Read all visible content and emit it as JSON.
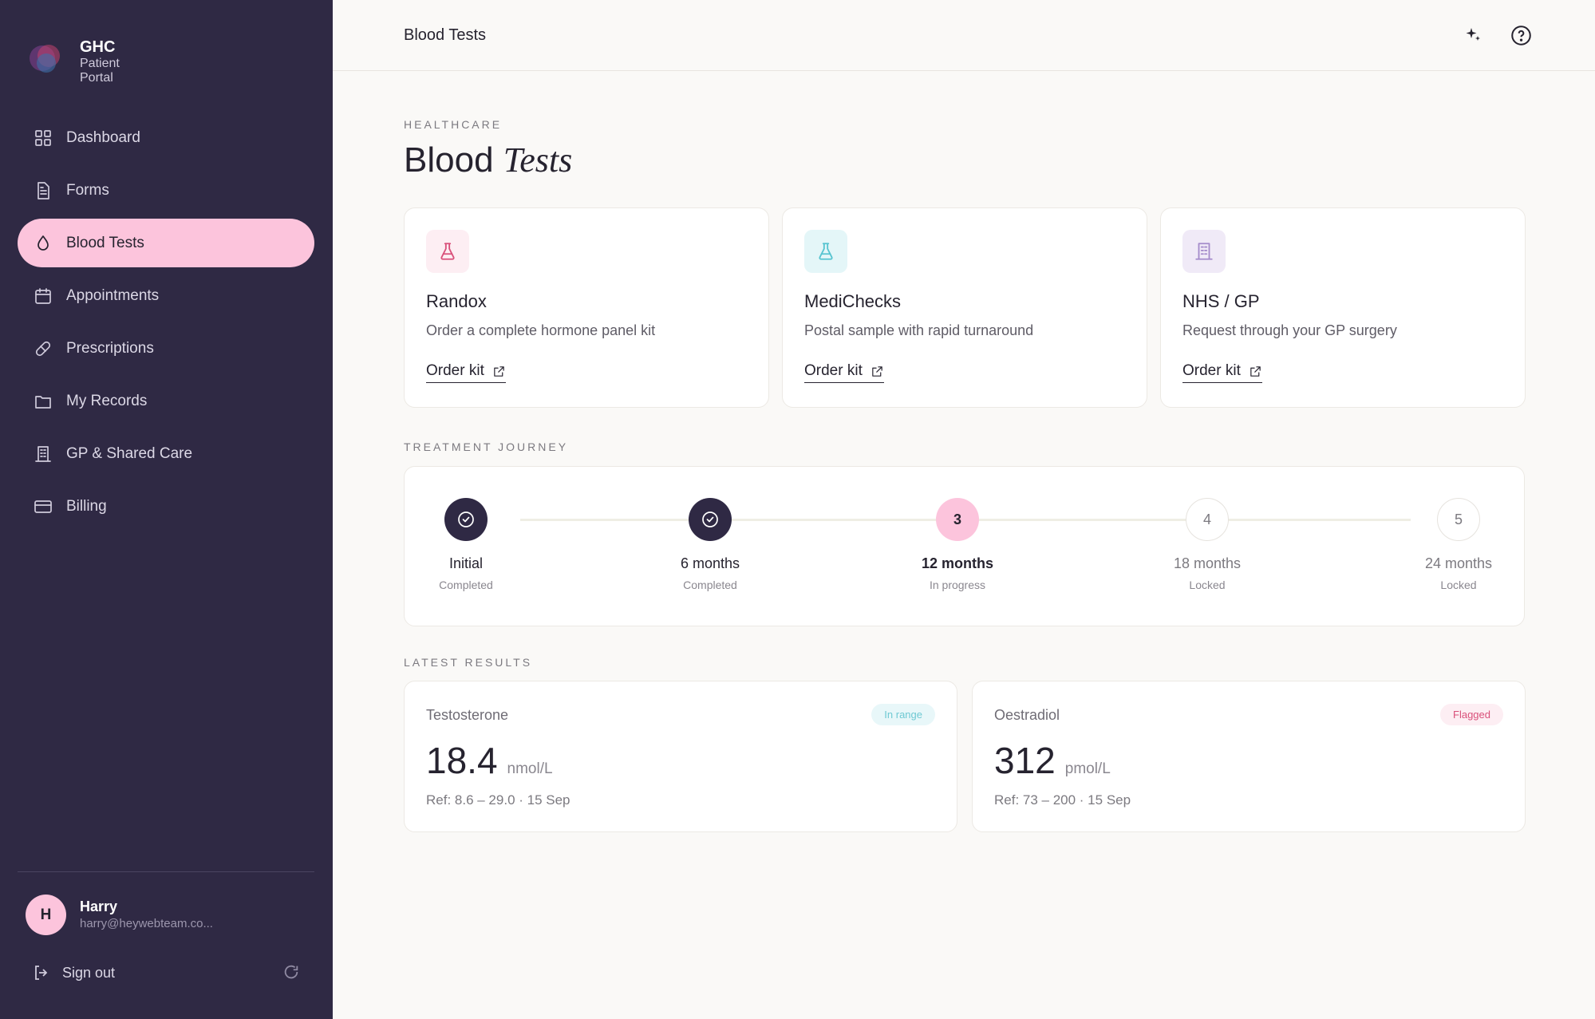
{
  "sidebar": {
    "brand": {
      "name": "GHC",
      "subtitle_lines": [
        "Patient",
        "Portal"
      ]
    },
    "nav": [
      {
        "label": "Dashboard"
      },
      {
        "label": "Forms"
      },
      {
        "label": "Blood Tests"
      },
      {
        "label": "Appointments"
      },
      {
        "label": "Prescriptions"
      },
      {
        "label": "My Records"
      },
      {
        "label": "GP & Shared Care"
      },
      {
        "label": "Billing"
      }
    ],
    "active": 2,
    "user": {
      "initial": "H",
      "name": "Harry",
      "email": "harry@heywebteam.co..."
    },
    "sign_out": "Sign out"
  },
  "header": {
    "title": "Blood Tests"
  },
  "page": {
    "eyebrow": "HEALTHCARE",
    "title": "Blood",
    "title_italic": "Tests"
  },
  "providers": [
    {
      "name": "Randox",
      "description": "Order a complete hormone panel kit",
      "link": "Order kit"
    },
    {
      "name": "MediChecks",
      "description": "Postal sample with rapid turnaround",
      "link": "Order kit"
    },
    {
      "name": "NHS / GP",
      "description": "Request through your GP surgery",
      "link": "Order kit"
    }
  ],
  "journey": {
    "heading": "TREATMENT JOURNEY",
    "steps": [
      {
        "label": "Initial",
        "status": "Completed"
      },
      {
        "label": "6 months",
        "status": "Completed"
      },
      {
        "number": "3",
        "label": "12 months",
        "status": "In progress"
      },
      {
        "number": "4",
        "label": "18 months",
        "status": "Locked"
      },
      {
        "number": "5",
        "label": "24 months",
        "status": "Locked"
      }
    ]
  },
  "results": {
    "heading": "LATEST RESULTS",
    "items": [
      {
        "name": "Testosterone",
        "badge": "In range",
        "value": 18.4,
        "unit": "nmol/L",
        "ref": "Ref: 8.6 – 29.0 · 15 Sep"
      },
      {
        "name": "Oestradiol",
        "badge": "Flagged",
        "value": 312,
        "unit": "pmol/L",
        "ref": "Ref: 73 – 200 · 15 Sep"
      }
    ]
  }
}
